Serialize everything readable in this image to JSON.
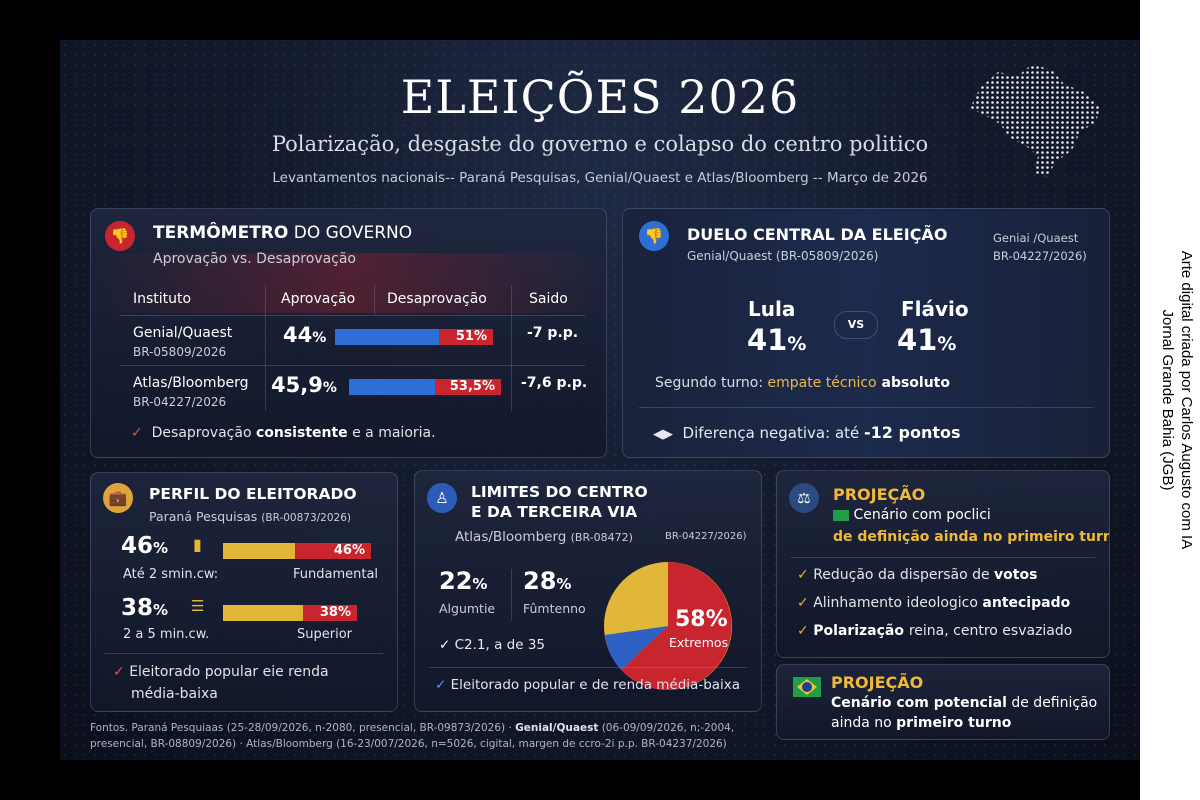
{
  "header": {
    "title": "ELEIÇÕES 2026",
    "subtitle": "Polarização, desgaste do governo e colapso do centro politico",
    "sources_line": "Levantamentos nacionais-- Paraná Pesquisas, Genial/Quaest e Atlas/Bloomberg -- Março de 2026"
  },
  "credit": {
    "line1": "Arte digital criada por Carlos Augusto com IA",
    "line2": "Jornal Grande Bahia (JGB)"
  },
  "termometro": {
    "title_bold": "TERMÔMETRO",
    "title_rest": " DO GOVERNO",
    "subtitle": "Aprovação vs. Desaprovação",
    "columns": [
      "Instituto",
      "Aprovação",
      "Desaprovação",
      "Saido"
    ],
    "rows": [
      {
        "name": "Genial/Quaest",
        "code": "BR-05809/2026",
        "approval": "44",
        "approval_unit": "%",
        "disapproval": "51%",
        "saldo": "-7 p.p.",
        "approval_pct": 44,
        "disapproval_pct": 51
      },
      {
        "name": "Atlas/Bloomberg",
        "code": "BR-04227/2026",
        "approval": "45,9",
        "approval_unit": "%",
        "disapproval": "53,5%",
        "saldo": "-7,6 p.p.",
        "approval_pct": 45.9,
        "disapproval_pct": 53.5
      }
    ],
    "note_a": "Desaprovação ",
    "note_b": "consistente",
    "note_c": " e a maioria."
  },
  "duelo": {
    "title": "DUELO CENTRAL DA ELEIÇÃO",
    "subtitle": "Genial/Quaest (BR-05809/2026)",
    "side_label1": "Geniai /Quaest",
    "side_label2": "BR-04227/2026)",
    "candidate_a": "Lula",
    "pct_a": "41",
    "candidate_b": "Flávio",
    "pct_b": "41",
    "pct_unit": "%",
    "vs": "VS",
    "segundo_a": "Segundo turno: ",
    "segundo_b": "empate técnico",
    "segundo_c": " absoluto",
    "diferenca_a": "Diferença negativa: até ",
    "diferenca_b": "-12 pontos"
  },
  "perfil": {
    "title": "PERFIL DO ELEITORADO",
    "subtitle_a": "Paraná Pesquisas ",
    "subtitle_b": "(BR-00873/2026)",
    "rows": [
      {
        "value": "46",
        "unit": "%",
        "bar_label": "46%",
        "left_label": "Até 2 smin.cw:",
        "right_label": "Fundamental",
        "gold_pct": 46,
        "red_pct": 46
      },
      {
        "value": "38",
        "unit": "%",
        "bar_label": "38%",
        "left_label": "2 a 5 min.cw.",
        "right_label": "Superior",
        "gold_pct": 38,
        "red_pct": 38
      }
    ],
    "note_line1": "Eleitorado popular eie renda",
    "note_line2": "média-baixa"
  },
  "limites": {
    "title_line1": "LIMITES DO CENTRO",
    "title_line2": "E DA TERCEIRA VIA",
    "subtitle_a": "Atlas/Bloomberg ",
    "subtitle_b": "(BR-08472)",
    "side_code": "BR-04227/2026)",
    "stat1_value": "22",
    "stat1_label": "Algumtie",
    "stat2_value": "28",
    "stat2_label": "Fûmtenno",
    "pct_unit": "%",
    "check_line": "C2.1, a de 35",
    "pie_value": "58%",
    "pie_label": "Extremos",
    "note": "Eleitorado popular e de renda média-baixa"
  },
  "projecao1": {
    "title": "PROJEÇÃO",
    "line1": "Cenário com poclici",
    "line2": "de definição ainda no primeiro turno",
    "items": [
      {
        "a": "Redução da dispersão de ",
        "b": "votos"
      },
      {
        "a": "Alinhamento ideologico ",
        "b": "antecipado"
      },
      {
        "a": "Polarização ",
        "b": "reina, centro esvaziado"
      }
    ]
  },
  "projecao2": {
    "title": "PROJEÇÃO",
    "line1_a": "Cenário com potencial",
    "line1_b": " de definição",
    "line2_a": "ainda no ",
    "line2_b": "primeiro turno"
  },
  "footer": {
    "line1_a": "Fontos. Paraná Pesquiaas (25-28/09/2026, n-2080, presencial, BR-09873/2026) · ",
    "line1_b": "Genial/Quaest",
    "line1_c": " (06-09/09/2026, n;-2004,",
    "line2": "presencial, BR-08809/2026) · Atlas/Bloomberg (16-23/007/2026, n=5026, cigital, margen de ccro-2i p.p. BR-04237/2026)"
  },
  "colors": {
    "red": "#c8252e",
    "blue": "#2e6fd6",
    "gold": "#e2b638",
    "accent_gold": "#f0b93a"
  }
}
